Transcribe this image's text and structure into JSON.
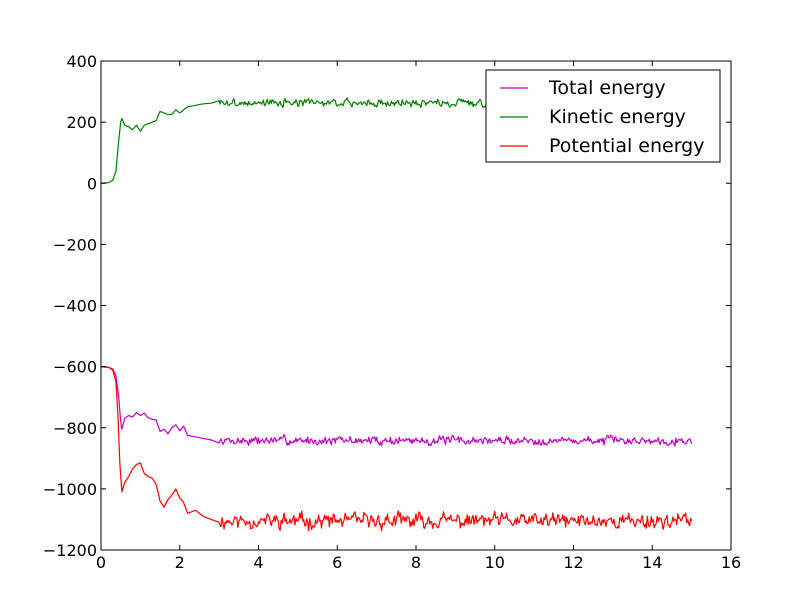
{
  "chart_data": {
    "type": "line",
    "title": "",
    "xlabel": "",
    "ylabel": "",
    "xlim": [
      0,
      16
    ],
    "ylim": [
      -1200,
      400
    ],
    "xticks": [
      "0",
      "2",
      "4",
      "6",
      "8",
      "10",
      "12",
      "14",
      "16"
    ],
    "yticks": [
      "−1200",
      "−1000",
      "−800",
      "−600",
      "−400",
      "−200",
      "0",
      "200",
      "400"
    ],
    "grid": false,
    "legend_position": "top-right",
    "x_end": 15,
    "series": [
      {
        "name": "Total energy",
        "color": "#bf00bf",
        "points": [
          [
            0,
            -600
          ],
          [
            0.2,
            -602
          ],
          [
            0.3,
            -608
          ],
          [
            0.38,
            -630
          ],
          [
            0.45,
            -700
          ],
          [
            0.5,
            -780
          ],
          [
            0.53,
            -805
          ],
          [
            0.6,
            -770
          ],
          [
            0.7,
            -760
          ],
          [
            0.8,
            -765
          ],
          [
            0.9,
            -750
          ],
          [
            1.0,
            -760
          ],
          [
            1.1,
            -752
          ],
          [
            1.2,
            -768
          ],
          [
            1.3,
            -772
          ],
          [
            1.4,
            -775
          ],
          [
            1.5,
            -812
          ],
          [
            1.6,
            -805
          ],
          [
            1.7,
            -820
          ],
          [
            1.8,
            -800
          ],
          [
            1.9,
            -790
          ],
          [
            2.0,
            -810
          ],
          [
            2.1,
            -795
          ],
          [
            2.2,
            -825
          ],
          [
            2.4,
            -830
          ],
          [
            2.6,
            -835
          ],
          [
            2.8,
            -840
          ],
          [
            3.0,
            -850
          ]
        ],
        "noise": {
          "x_from": 3.0,
          "x_to": 15.0,
          "base": -842,
          "amplitude": 18,
          "seed": 7
        }
      },
      {
        "name": "Kinetic energy",
        "color": "#008000",
        "points": [
          [
            0,
            0
          ],
          [
            0.2,
            2
          ],
          [
            0.3,
            10
          ],
          [
            0.38,
            40
          ],
          [
            0.45,
            140
          ],
          [
            0.5,
            200
          ],
          [
            0.53,
            212
          ],
          [
            0.6,
            190
          ],
          [
            0.7,
            185
          ],
          [
            0.8,
            175
          ],
          [
            0.9,
            190
          ],
          [
            1.0,
            170
          ],
          [
            1.1,
            190
          ],
          [
            1.2,
            195
          ],
          [
            1.3,
            200
          ],
          [
            1.4,
            205
          ],
          [
            1.5,
            235
          ],
          [
            1.6,
            230
          ],
          [
            1.7,
            225
          ],
          [
            1.8,
            225
          ],
          [
            1.9,
            240
          ],
          [
            2.0,
            230
          ],
          [
            2.1,
            240
          ],
          [
            2.2,
            250
          ],
          [
            2.4,
            255
          ],
          [
            2.6,
            260
          ],
          [
            2.8,
            262
          ],
          [
            3.0,
            270
          ]
        ],
        "noise": {
          "x_from": 3.0,
          "x_to": 9.8,
          "base": 263,
          "amplitude": 16,
          "seed": 3
        }
      },
      {
        "name": "Potential energy",
        "color": "#ff0000",
        "points": [
          [
            0,
            -600
          ],
          [
            0.2,
            -603
          ],
          [
            0.3,
            -612
          ],
          [
            0.38,
            -650
          ],
          [
            0.43,
            -760
          ],
          [
            0.48,
            -920
          ],
          [
            0.53,
            -1010
          ],
          [
            0.6,
            -980
          ],
          [
            0.7,
            -960
          ],
          [
            0.8,
            -935
          ],
          [
            0.9,
            -920
          ],
          [
            1.0,
            -915
          ],
          [
            1.1,
            -950
          ],
          [
            1.2,
            -960
          ],
          [
            1.3,
            -965
          ],
          [
            1.4,
            -985
          ],
          [
            1.5,
            -1040
          ],
          [
            1.6,
            -1060
          ],
          [
            1.7,
            -1035
          ],
          [
            1.8,
            -1020
          ],
          [
            1.9,
            -1000
          ],
          [
            2.0,
            -1030
          ],
          [
            2.1,
            -1045
          ],
          [
            2.2,
            -1080
          ],
          [
            2.4,
            -1070
          ],
          [
            2.6,
            -1090
          ],
          [
            2.8,
            -1100
          ],
          [
            3.0,
            -1110
          ]
        ],
        "noise": {
          "x_from": 3.0,
          "x_to": 15.0,
          "base": -1105,
          "amplitude": 32,
          "seed": 11
        }
      }
    ]
  }
}
